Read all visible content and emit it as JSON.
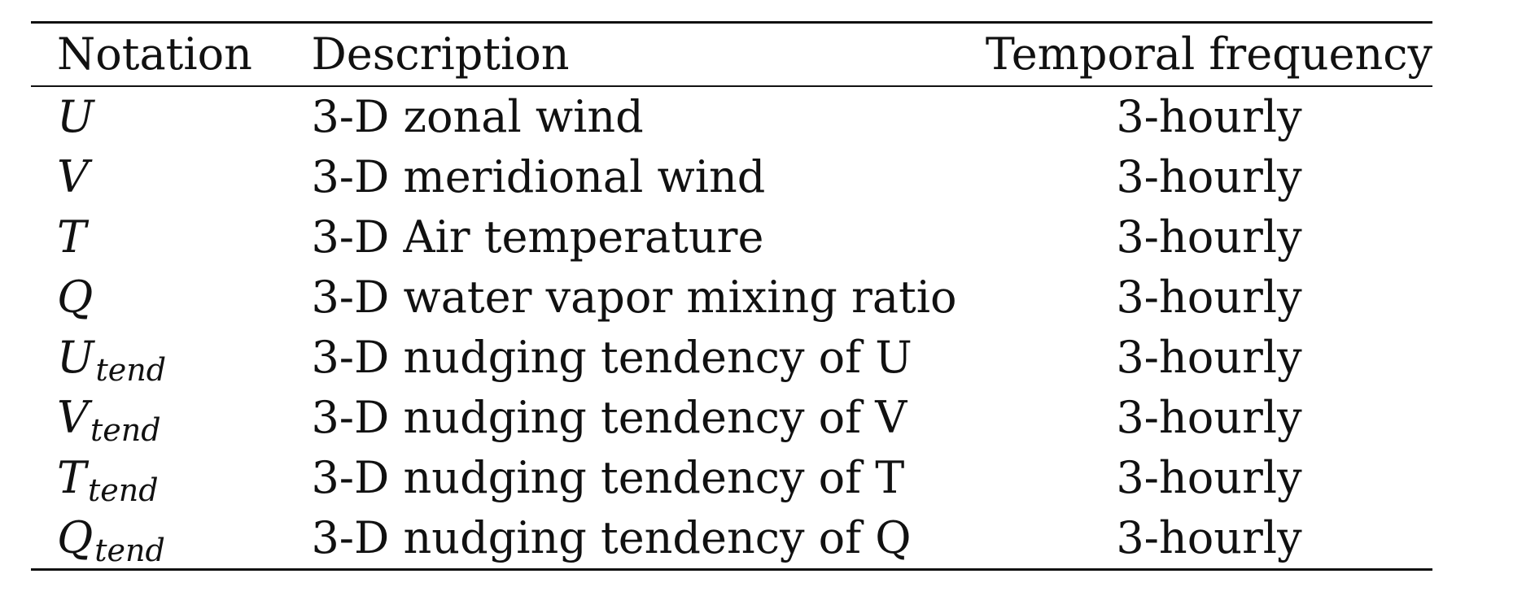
{
  "table": {
    "headers": {
      "notation": "Notation",
      "description": "Description",
      "frequency": "Temporal frequency"
    },
    "rows": [
      {
        "symbol": "U",
        "subscript": "",
        "description": "3-D zonal wind",
        "frequency": "3-hourly"
      },
      {
        "symbol": "V",
        "subscript": "",
        "description": "3-D meridional wind",
        "frequency": "3-hourly"
      },
      {
        "symbol": "T",
        "subscript": "",
        "description": "3-D Air temperature",
        "frequency": "3-hourly"
      },
      {
        "symbol": "Q",
        "subscript": "",
        "description": "3-D water vapor mixing ratio",
        "frequency": "3-hourly"
      },
      {
        "symbol": "U",
        "subscript": "tend",
        "description": "3-D nudging tendency of U",
        "frequency": "3-hourly"
      },
      {
        "symbol": "V",
        "subscript": "tend",
        "description": "3-D nudging tendency of V",
        "frequency": "3-hourly"
      },
      {
        "symbol": "T",
        "subscript": "tend",
        "description": "3-D nudging tendency of T",
        "frequency": "3-hourly"
      },
      {
        "symbol": "Q",
        "subscript": "tend",
        "description": "3-D nudging tendency of Q",
        "frequency": "3-hourly"
      }
    ]
  }
}
